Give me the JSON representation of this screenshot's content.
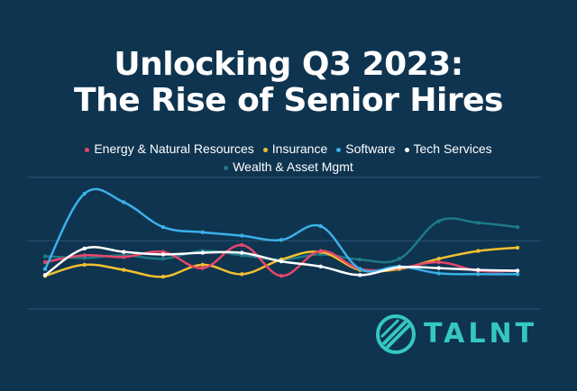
{
  "header": {
    "title_line1": "Unlocking Q3 2023:",
    "title_line2": "The Rise of Senior Hires"
  },
  "logo": {
    "text": "TALNT",
    "icon": "talnt-logo-icon",
    "color": "#35c7c2"
  },
  "chart_data": {
    "type": "line",
    "title": "Unlocking Q3 2023: The Rise of Senior Hires",
    "xlabel": "",
    "ylabel": "",
    "x": [
      1,
      2,
      3,
      4,
      5,
      6,
      7,
      8,
      9,
      10,
      11,
      12,
      13
    ],
    "ylim": [
      0,
      1
    ],
    "grid": true,
    "legend_position": "top",
    "series": [
      {
        "name": "Energy & Natural Resources",
        "color": "#e8466a",
        "values": [
          0.2,
          0.28,
          0.26,
          0.32,
          0.13,
          0.4,
          0.04,
          0.33,
          0.12,
          0.13,
          0.2,
          0.1,
          0.1
        ]
      },
      {
        "name": "Insurance",
        "color": "#f0c030",
        "values": [
          0.04,
          0.17,
          0.11,
          0.03,
          0.17,
          0.06,
          0.23,
          0.32,
          0.11,
          0.12,
          0.24,
          0.33,
          0.37
        ]
      },
      {
        "name": "Software",
        "color": "#3bb0e8",
        "values": [
          0.12,
          1.0,
          0.9,
          0.61,
          0.55,
          0.51,
          0.46,
          0.62,
          0.12,
          0.15,
          0.07,
          0.06,
          0.06
        ]
      },
      {
        "name": "Tech Services",
        "color": "#ffffff",
        "values": [
          0.05,
          0.36,
          0.32,
          0.29,
          0.31,
          0.31,
          0.21,
          0.15,
          0.05,
          0.14,
          0.13,
          0.11,
          0.1
        ]
      },
      {
        "name": "Wealth & Asset Mgmt",
        "color": "#1e7a86",
        "values": [
          0.27,
          0.25,
          0.28,
          0.24,
          0.33,
          0.28,
          0.23,
          0.29,
          0.23,
          0.24,
          0.68,
          0.66,
          0.61
        ]
      }
    ]
  }
}
